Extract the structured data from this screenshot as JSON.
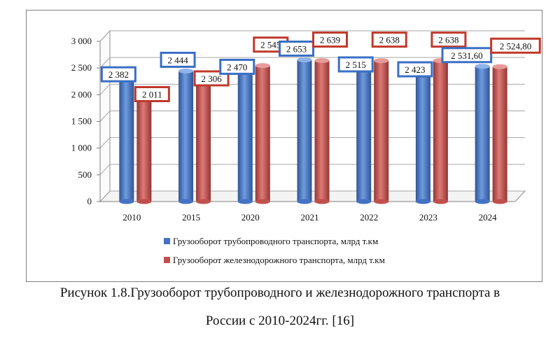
{
  "caption": {
    "line1": "Рисунок 1.8.Грузооборот трубопроводного и железнодорожного транспорта в",
    "line2": "России с 2010-2024гг. [16]"
  },
  "chart_data": {
    "type": "bar",
    "categories": [
      "2010",
      "2015",
      "2020",
      "2021",
      "2022",
      "2023",
      "2024"
    ],
    "ylim": [
      0,
      3000
    ],
    "yticks": [
      0,
      500,
      1000,
      1500,
      2000,
      2500,
      3000
    ],
    "ytick_labels": [
      "0",
      "500",
      "1 000",
      "1 500",
      "2 000",
      "2 500",
      "3 000"
    ],
    "grid": true,
    "legend_position": "bottom",
    "series": [
      {
        "name": "Грузооборот трубопроводного транспорта, млрд т.км",
        "color": "#4472c4",
        "values": [
          2382,
          2444,
          2470,
          2653,
          2515,
          2423,
          2531.6
        ],
        "labels": [
          "2 382",
          "2 444",
          "2 470",
          "2 653",
          "2 515",
          "2 423",
          "2 531,60"
        ]
      },
      {
        "name": "Грузооборот железнодорожного транспорта, млрд т.км",
        "color": "#c0504d",
        "values": [
          2011,
          2306,
          2545,
          2639,
          2638,
          2638,
          2524.8
        ],
        "labels": [
          "2 011",
          "2 306",
          "2 545",
          "2 639",
          "2 638",
          "2 638",
          "2 524,80"
        ]
      }
    ]
  }
}
